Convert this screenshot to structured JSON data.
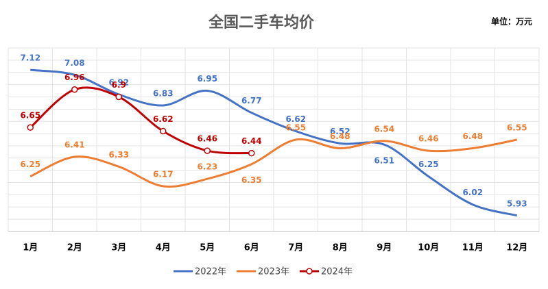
{
  "chart_data": {
    "type": "line",
    "title": "全国二手车均价",
    "unit": "单位：万元",
    "categories": [
      "1月",
      "2月",
      "3月",
      "4月",
      "5月",
      "6月",
      "7月",
      "8月",
      "9月",
      "10月",
      "11月",
      "12月"
    ],
    "series": [
      {
        "name": "2022年",
        "color": "#4472c4",
        "values": [
          7.12,
          7.08,
          6.92,
          6.83,
          6.95,
          6.77,
          6.62,
          6.52,
          6.51,
          6.25,
          6.02,
          5.93
        ]
      },
      {
        "name": "2023年",
        "color": "#ed7d31",
        "values": [
          6.25,
          6.41,
          6.33,
          6.17,
          6.23,
          6.35,
          6.55,
          6.48,
          6.54,
          6.46,
          6.48,
          6.55
        ]
      },
      {
        "name": "2024年",
        "color": "#c00000",
        "markers": true,
        "values": [
          6.65,
          6.96,
          6.9,
          6.62,
          6.46,
          6.44,
          null,
          null,
          null,
          null,
          null,
          null
        ]
      }
    ],
    "ylim": [
      5.8,
      7.3
    ],
    "yticks": [
      5.8,
      5.9,
      6.0,
      6.1,
      6.2,
      6.3,
      6.4,
      6.5,
      6.6,
      6.7,
      6.8,
      6.9,
      7.0,
      7.1,
      7.2,
      7.3
    ],
    "grid": true,
    "legend": "bottom"
  }
}
